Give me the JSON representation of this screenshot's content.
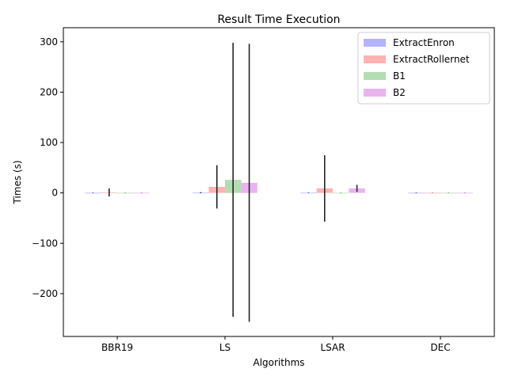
{
  "chart_data": {
    "type": "bar",
    "title": "Result Time Execution",
    "xlabel": "Algorithms",
    "ylabel": "Times (s)",
    "categories": [
      "BBR19",
      "LS",
      "LSAR",
      "DEC"
    ],
    "ylim": [
      -285,
      328
    ],
    "yticks": [
      -200,
      -100,
      0,
      100,
      200,
      300
    ],
    "ytick_labels": [
      "−200",
      "−100",
      "0",
      "100",
      "200",
      "300"
    ],
    "legend_position": "top-right",
    "grid": false,
    "series": [
      {
        "name": "ExtractEnron",
        "color": "#b3b3ff",
        "values": [
          0.3,
          0.5,
          0.4,
          0.3
        ],
        "errors": [
          0.5,
          1,
          0.5,
          0.5
        ]
      },
      {
        "name": "ExtractRollernet",
        "color": "#ffb3b3",
        "values": [
          1,
          12,
          9,
          0.3
        ],
        "errors": [
          8,
          43,
          66,
          0.3
        ]
      },
      {
        "name": "B1",
        "color": "#b3dcb3",
        "values": [
          0.3,
          26,
          0.3,
          0.3
        ],
        "errors": [
          0.3,
          272,
          0.3,
          0.3
        ]
      },
      {
        "name": "B2",
        "color": "#eab3f0",
        "values": [
          0.3,
          20,
          9,
          0.3
        ],
        "errors": [
          0.3,
          276,
          7,
          0.3
        ]
      }
    ]
  }
}
